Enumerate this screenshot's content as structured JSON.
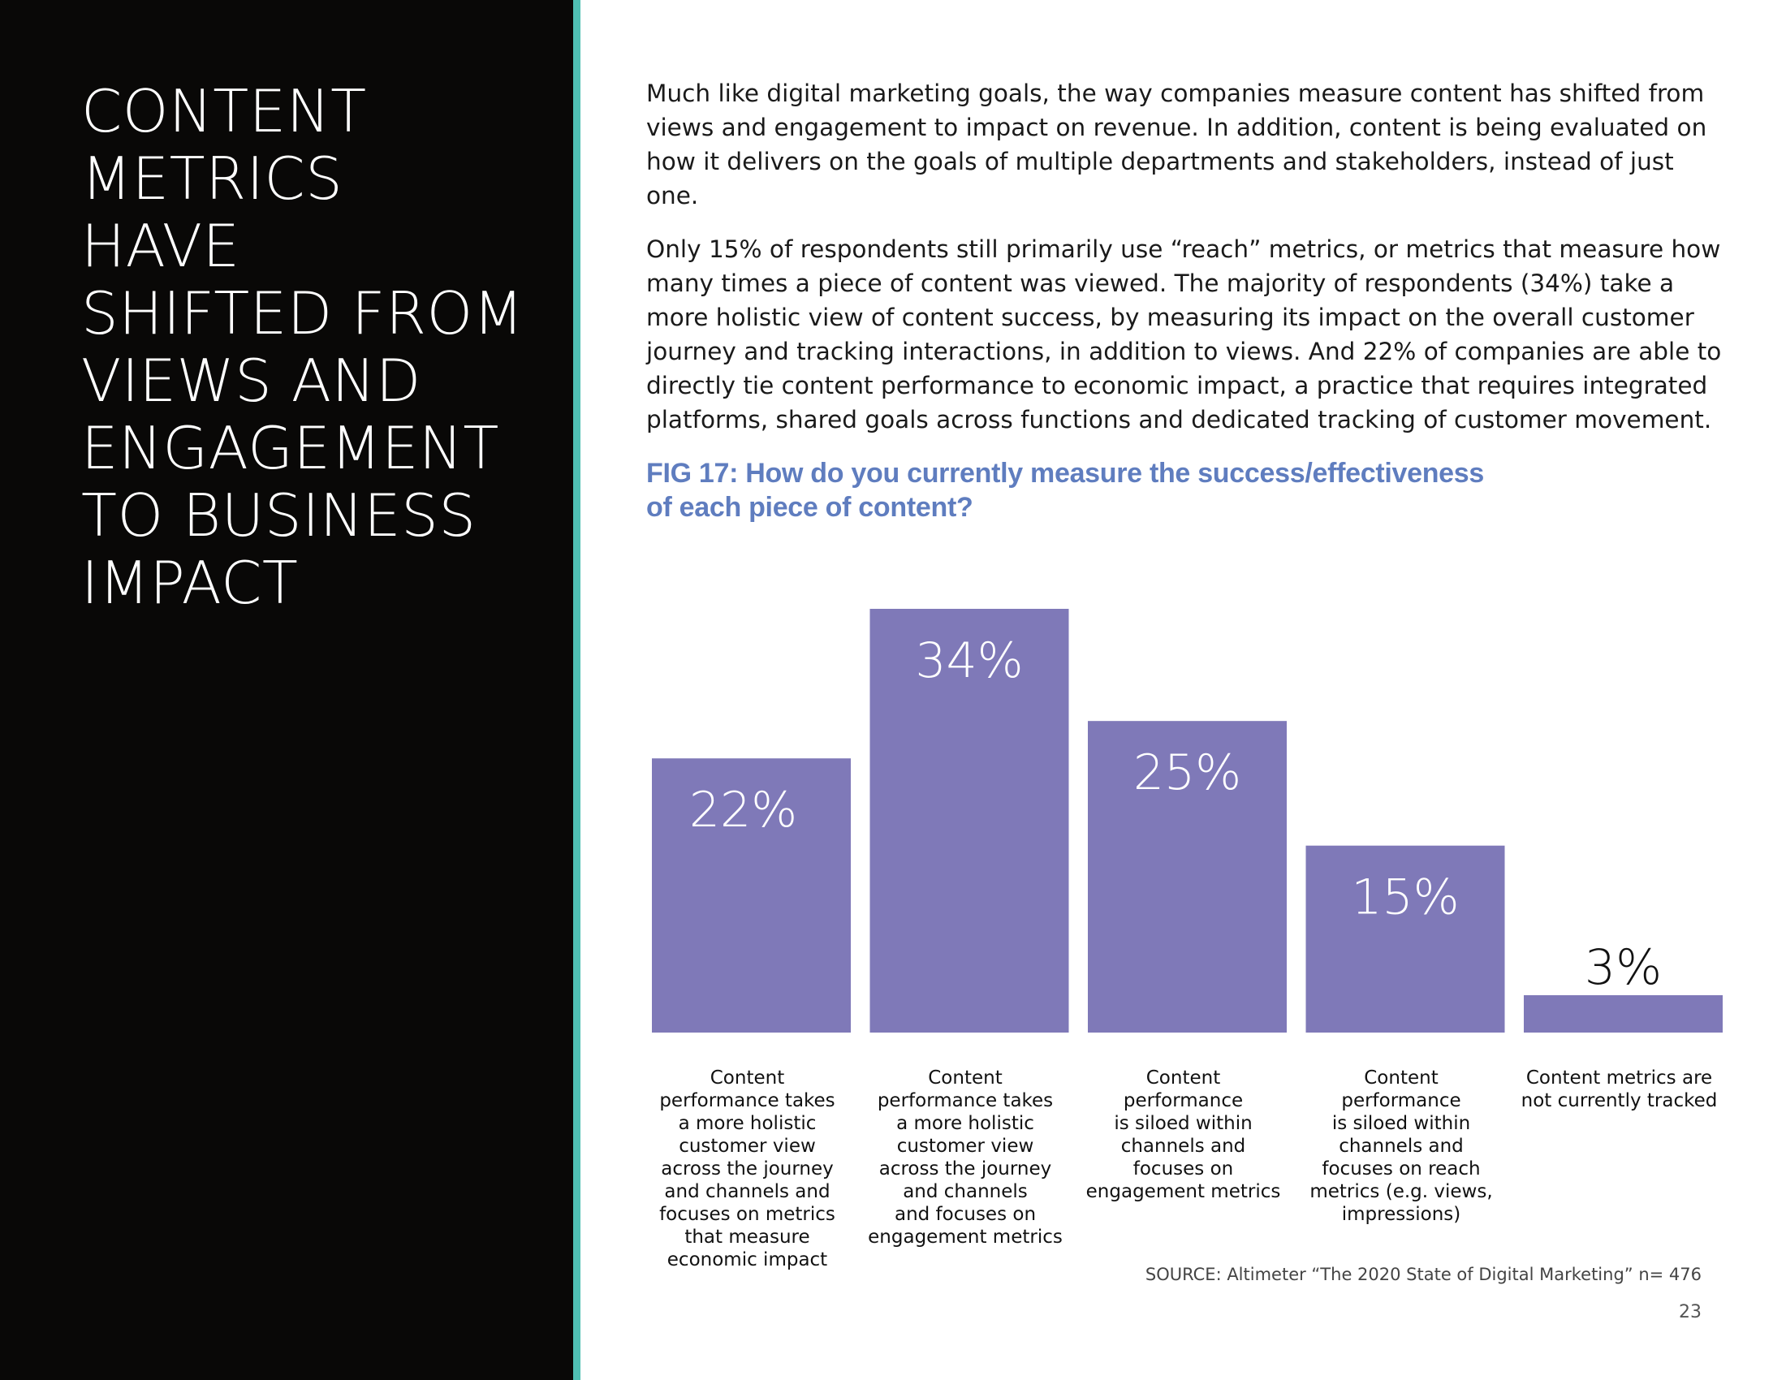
{
  "sidebar": {
    "heading_lines": [
      "CONTENT",
      "METRICS",
      "HAVE",
      "SHIFTED FROM",
      "VIEWS AND",
      "ENGAGEMENT",
      "TO BUSINESS",
      "IMPACT"
    ]
  },
  "body": {
    "paragraphs": [
      "Much like digital marketing goals, the way companies measure content has shifted from views and engagement to impact on revenue. In addition, content is being evaluated on how it delivers on the goals of multiple departments and stakeholders, instead of just one.",
      "Only 15% of respondents still primarily use “reach” metrics, or metrics that measure how many times a piece of content was viewed. The majority of respondents (34%) take a more holistic view of content success, by measuring its impact on the overall customer journey and tracking interactions, in addition to views. And 22% of companies are able to directly tie content performance to economic impact, a practice that requires integrated platforms, shared goals across functions and dedicated tracking of customer movement."
    ]
  },
  "figure": {
    "title_lines": [
      "FIG 17: How do you currently measure the success/effectiveness",
      "of each piece of content?"
    ]
  },
  "chart_data": {
    "type": "bar",
    "title": "FIG 17: How do you currently measure the success/effectiveness of each piece of content?",
    "categories": [
      "Content performance takes a more holistic customer view across the journey and channels and focuses on metrics that measure economic impact",
      "Content performance takes a more holistic customer view across the journey and channels and focuses on engagement metrics",
      "Content performance is siloed within channels and focuses on engagement metrics",
      "Content performance is siloed within channels and focuses on reach metrics (e.g. views, impressions)",
      "Content metrics are not currently tracked"
    ],
    "category_label_lines": [
      [
        "Content",
        "performance takes",
        "a more holistic",
        "customer view",
        "across the journey",
        "and channels and",
        "focuses on metrics",
        "that measure",
        "economic impact"
      ],
      [
        "Content",
        "performance takes",
        "a more holistic",
        "customer view",
        "across the journey",
        "and channels",
        "and focuses on",
        "engagement metrics"
      ],
      [
        "Content",
        "performance",
        "is siloed within",
        "channels and",
        "focuses on",
        "engagement metrics"
      ],
      [
        "Content",
        "performance",
        "is siloed within",
        "channels and",
        "focuses on reach",
        "metrics (e.g. views,",
        "impressions)"
      ],
      [
        "Content metrics are",
        "not currently tracked"
      ]
    ],
    "values": [
      22,
      34,
      25,
      15,
      3
    ],
    "value_labels": [
      "22%",
      "34%",
      "25%",
      "15%",
      "3%"
    ],
    "ylim": [
      0,
      34
    ],
    "xlabel": "",
    "ylabel": "",
    "grid": false,
    "legend": "none",
    "bar_color": "#7f79b8",
    "inside_label_color": "#ffffff",
    "outside_label_color": "#111111"
  },
  "footer": {
    "source": "SOURCE: Altimeter “The 2020 State of Digital Marketing” n= 476",
    "page_number": "23"
  },
  "colors": {
    "sidebar_bg": "#090807",
    "accent": "#4fbfb3",
    "figure_title": "#5f7dbf"
  }
}
